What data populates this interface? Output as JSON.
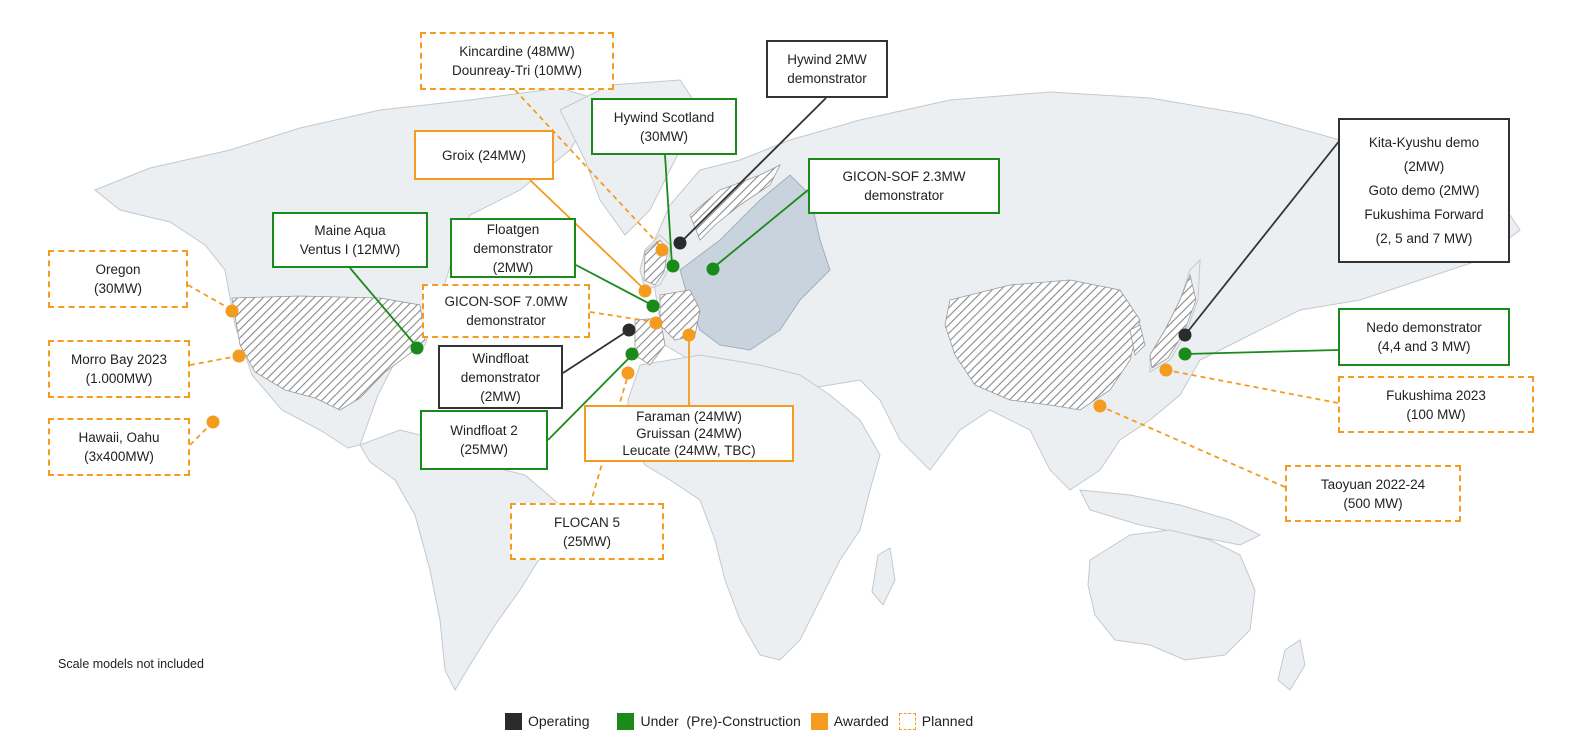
{
  "colors": {
    "operating": "#2b2b2b",
    "construction": "#1a8a1a",
    "awarded": "#f39c1f",
    "land": "#eceff2",
    "europe": "#c8d3de",
    "hatched": "#9a9a9a"
  },
  "note": "Scale models not included",
  "legend": [
    {
      "status": "operating",
      "label": "Operating"
    },
    {
      "status": "construction",
      "label": "Under  (Pre)-Construction"
    },
    {
      "status": "awarded",
      "label": "Awarded"
    },
    {
      "status": "planned",
      "label": "Planned"
    }
  ],
  "projects": [
    {
      "id": "kincardine",
      "status": "planned",
      "lines": [
        "Kincardine  (48MW)",
        "Dounreay-Tri  (10MW)"
      ]
    },
    {
      "id": "hywind-2mw",
      "status": "operating",
      "lines": [
        "Hywind 2MW",
        "demonstrator"
      ]
    },
    {
      "id": "hywind-scotland",
      "status": "construction",
      "lines": [
        "Hywind Scotland",
        "(30MW)"
      ]
    },
    {
      "id": "groix",
      "status": "awarded",
      "lines": [
        "Groix (24MW)"
      ]
    },
    {
      "id": "kita-kyushu",
      "status": "operating",
      "lines": [
        "Kita-Kyushu demo",
        "(2MW)",
        "Goto demo (2MW)",
        "Fukushima Forward",
        "(2, 5 and 7 MW)"
      ]
    },
    {
      "id": "gicon-2-3",
      "status": "construction",
      "lines": [
        "GICON-SOF  2.3MW",
        "demonstrator"
      ]
    },
    {
      "id": "maine",
      "status": "construction",
      "lines": [
        "Maine Aqua",
        "Ventus I (12MW)"
      ]
    },
    {
      "id": "floatgen",
      "status": "construction",
      "lines": [
        "Floatgen",
        "demonstrator",
        "(2MW)"
      ]
    },
    {
      "id": "oregon",
      "status": "planned",
      "lines": [
        "Oregon",
        "(30MW)"
      ]
    },
    {
      "id": "gicon-7-0",
      "status": "planned",
      "lines": [
        "GICON-SOF  7.0MW",
        "demonstrator"
      ]
    },
    {
      "id": "nedo",
      "status": "construction",
      "lines": [
        "Nedo demonstrator",
        "(4,4 and 3 MW)"
      ]
    },
    {
      "id": "morro-bay",
      "status": "planned",
      "lines": [
        "Morro Bay 2023",
        "(1.000MW)"
      ]
    },
    {
      "id": "windfloat",
      "status": "operating",
      "lines": [
        "Windfloat",
        "demonstrator",
        "(2MW)"
      ]
    },
    {
      "id": "fukushima-2023",
      "status": "planned",
      "lines": [
        "Fukushima 2023",
        "(100 MW)"
      ]
    },
    {
      "id": "hawaii",
      "status": "planned",
      "lines": [
        "Hawaii, Oahu",
        "(3x400MW)"
      ]
    },
    {
      "id": "windfloat-2",
      "status": "construction",
      "lines": [
        "Windfloat 2",
        "(25MW)"
      ]
    },
    {
      "id": "faraman",
      "status": "awarded",
      "lines": [
        "Faraman  (24MW)",
        "Gruissan (24MW)",
        "Leucate (24MW, TBC)"
      ]
    },
    {
      "id": "taoyuan",
      "status": "planned",
      "lines": [
        "Taoyuan 2022-24",
        "(500 MW)"
      ]
    },
    {
      "id": "flocan",
      "status": "planned",
      "lines": [
        "FLOCAN 5",
        "(25MW)"
      ]
    }
  ]
}
